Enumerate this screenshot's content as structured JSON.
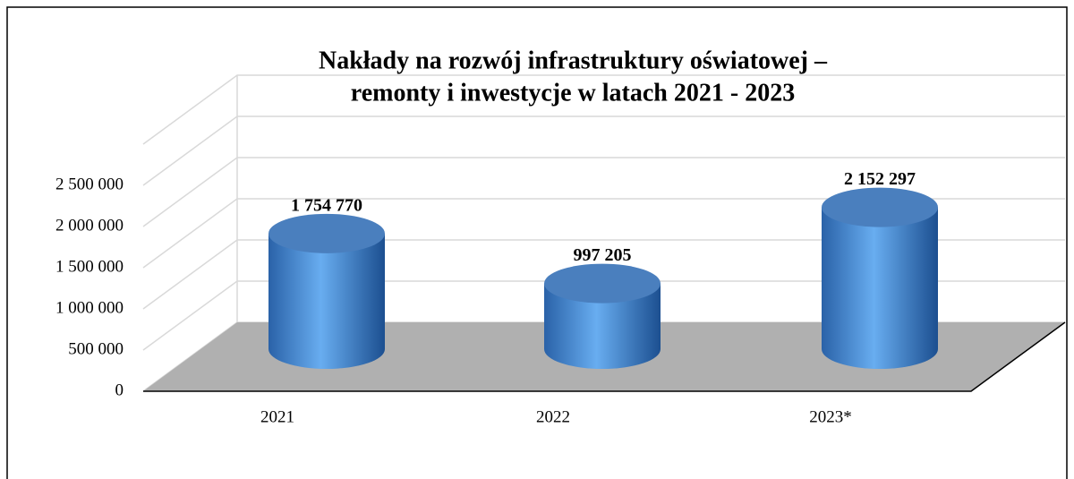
{
  "chart_data": {
    "type": "bar3d",
    "title": [
      "Nakłady na rozwój infrastruktury oświatowej –",
      "remonty i inwestycje w latach 2021 - 2023"
    ],
    "categories": [
      "2021",
      "2022",
      "2023*"
    ],
    "values": [
      1754770,
      997205,
      2152297
    ],
    "value_labels": [
      "1 754 770",
      "997 205",
      "2 152 297"
    ],
    "color": "#4a8fd8",
    "ylim": [
      0,
      3000000
    ],
    "yticks": [
      0,
      {
        "value": 500000,
        "label": "500 000"
      },
      {
        "value": 1000000,
        "label": "1 000 000"
      },
      {
        "value": 1500000,
        "label": "1 500 000"
      },
      {
        "value": 2000000,
        "label": "2 000 000"
      },
      {
        "value": 2500000,
        "label": "2 500 000"
      }
    ],
    "grid": true
  }
}
